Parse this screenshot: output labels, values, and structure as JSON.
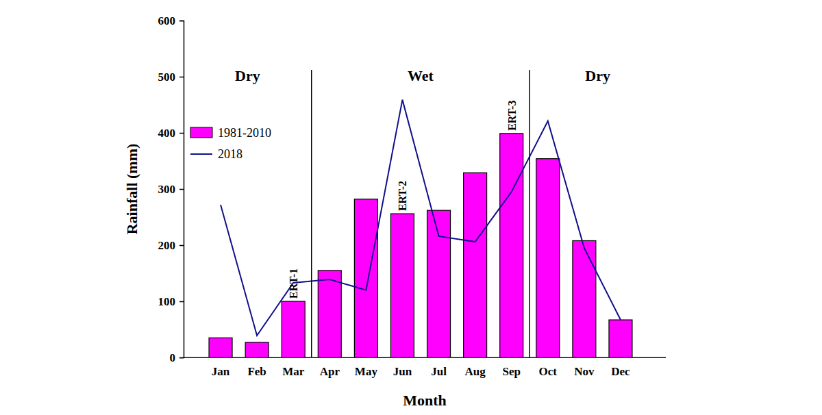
{
  "chart_data": {
    "type": "bar",
    "x_label": "Month",
    "y_label": "Rainfall (mm)",
    "categories": [
      "Jan",
      "Feb",
      "Mar",
      "Apr",
      "May",
      "Jun",
      "Jul",
      "Aug",
      "Sep",
      "Oct",
      "Nov",
      "Dec"
    ],
    "series": [
      {
        "name": "1981-2010",
        "type": "bar",
        "color": "#ff00ff",
        "values": [
          35,
          27,
          100,
          155,
          282,
          256,
          262,
          329,
          399,
          354,
          208,
          67
        ]
      },
      {
        "name": "2018",
        "type": "line",
        "color": "#10108c",
        "values": [
          272,
          39,
          133,
          139,
          120,
          459,
          216,
          206,
          295,
          421,
          195,
          67
        ]
      }
    ],
    "ylim": [
      0,
      600
    ],
    "yticks": [
      0,
      100,
      200,
      300,
      400,
      500,
      600
    ],
    "legend": "upper left",
    "seasons": [
      {
        "label": "Dry",
        "categories": [
          "Jan",
          "Feb",
          "Mar"
        ]
      },
      {
        "label": "Wet",
        "categories": [
          "Apr",
          "May",
          "Jun",
          "Jul",
          "Aug",
          "Sep"
        ]
      },
      {
        "label": "Dry",
        "categories": [
          "Oct",
          "Nov",
          "Dec"
        ]
      }
    ],
    "annotations": [
      {
        "text": "ERT-1",
        "category": "Mar"
      },
      {
        "text": "ERT-2",
        "category": "Jun"
      },
      {
        "text": "ERT-3",
        "category": "Sep"
      }
    ]
  }
}
